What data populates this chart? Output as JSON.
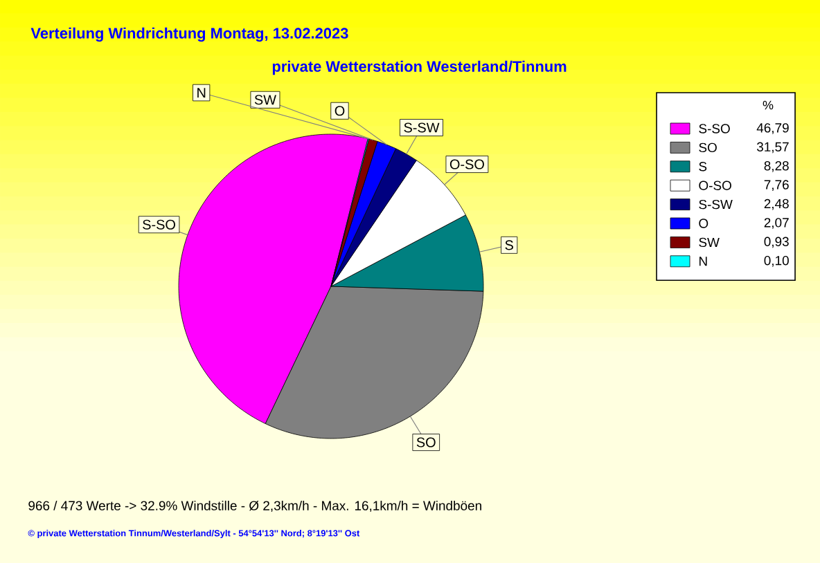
{
  "chart_data": {
    "type": "pie",
    "title": "Verteilung Windrichtung   Montag, 13.02.2023",
    "subtitle": "private Wetterstation Westerland/Tinnum",
    "legend_title": "%",
    "categories": [
      "S-SO",
      "SO",
      "S",
      "O-SO",
      "S-SW",
      "O",
      "SW",
      "N"
    ],
    "values": [
      46.79,
      31.57,
      8.28,
      7.76,
      2.48,
      2.07,
      0.93,
      0.1
    ],
    "value_labels": [
      "46,79",
      "31,57",
      "8,28",
      "7,76",
      "2,48",
      "2,07",
      "0,93",
      "0,10"
    ],
    "colors": [
      "#ff00ff",
      "#808080",
      "#008080",
      "#ffffff",
      "#000080",
      "#0000ff",
      "#800000",
      "#00ffff"
    ],
    "legend": "right",
    "annotations": [
      "966 / 473 Werte  -> 32.9% Windstille   -   Ø 2,3km/h  -  Max. 16,1km/h = Windböen",
      "© private Wetterstation Tinnum/Westerland/Sylt   -   54°54'13'' Nord; 8°19'13'' Ost"
    ]
  }
}
